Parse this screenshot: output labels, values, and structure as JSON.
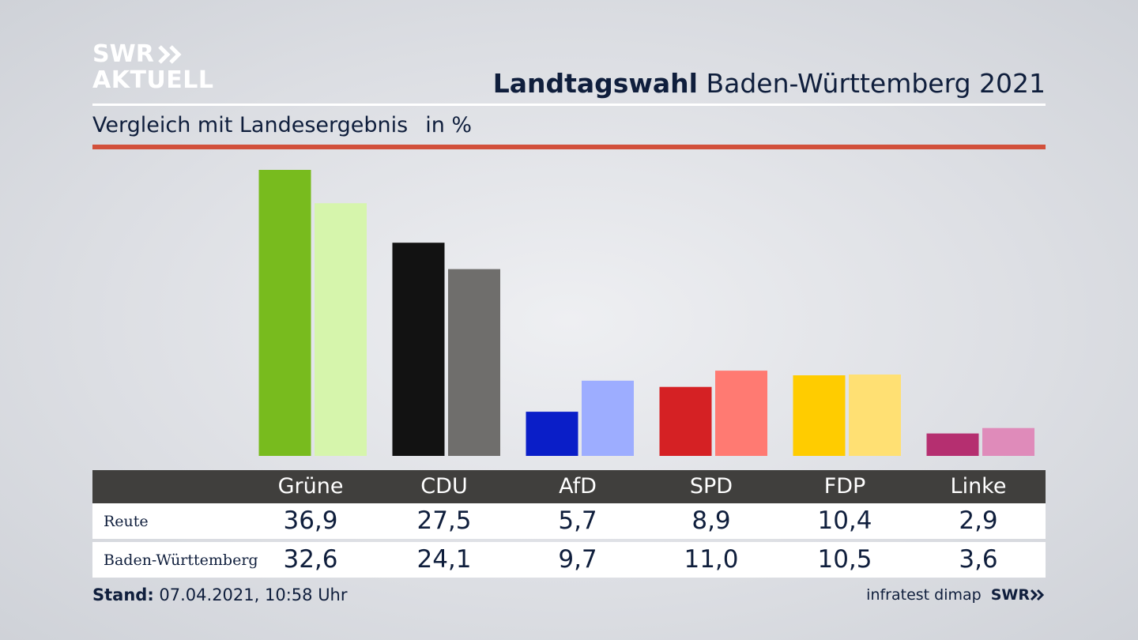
{
  "brand": {
    "line1": "SWR",
    "line2": "AKTUELL"
  },
  "header": {
    "title_bold": "Landtagswahl",
    "title_rest": "Baden-Württemberg 2021",
    "subtitle": "Vergleich mit Landesergebnis",
    "unit": "in %"
  },
  "colors": {
    "accent_red": "#d2503b",
    "header_bg": "#403f3d",
    "text": "#0f1e3c"
  },
  "chart_data": {
    "type": "bar",
    "categories": [
      "Grüne",
      "CDU",
      "AfD",
      "SPD",
      "FDP",
      "Linke"
    ],
    "series": [
      {
        "name": "Reute",
        "values": [
          36.9,
          27.5,
          5.7,
          8.9,
          10.4,
          2.9
        ],
        "colors": [
          "#78bb1e",
          "#121212",
          "#0a1ec8",
          "#d52124",
          "#ffcc00",
          "#b52f70"
        ]
      },
      {
        "name": "Baden-Württemberg",
        "values": [
          32.6,
          24.1,
          9.7,
          11.0,
          10.5,
          3.6
        ],
        "colors": [
          "#d6f5ac",
          "#6f6e6c",
          "#9dadff",
          "#ff7a72",
          "#ffe073",
          "#df8bba"
        ]
      }
    ],
    "ylim": [
      0,
      36.9
    ],
    "grid": false,
    "legend": "none"
  },
  "table": {
    "headers": [
      "Grüne",
      "CDU",
      "AfD",
      "SPD",
      "FDP",
      "Linke"
    ],
    "rows": [
      {
        "label": "Reute",
        "values": [
          "36,9",
          "27,5",
          "5,7",
          "8,9",
          "10,4",
          "2,9"
        ]
      },
      {
        "label": "Baden-Württemberg",
        "values": [
          "32,6",
          "24,1",
          "9,7",
          "11,0",
          "10,5",
          "3,6"
        ]
      }
    ]
  },
  "footer": {
    "stand_label": "Stand:",
    "stand_value": "07.04.2021, 10:58 Uhr",
    "source": "infratest dimap",
    "brand": "SWR"
  }
}
